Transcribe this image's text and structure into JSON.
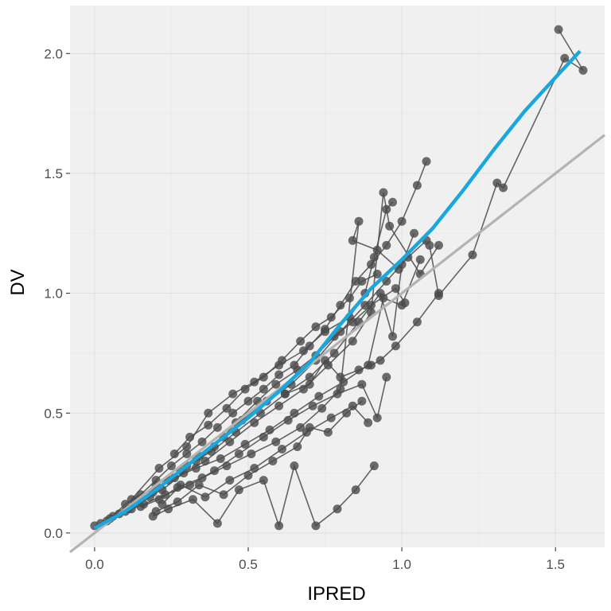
{
  "chart_data": {
    "type": "scatter",
    "xlabel": "IPRED",
    "ylabel": "DV",
    "xlim": [
      -0.08,
      1.66
    ],
    "ylim": [
      -0.06,
      2.2
    ],
    "x_ticks": [
      {
        "value": 0.0,
        "label": "0.0"
      },
      {
        "value": 0.5,
        "label": "0.5"
      },
      {
        "value": 1.0,
        "label": "1.0"
      },
      {
        "value": 1.5,
        "label": "1.5"
      }
    ],
    "y_ticks": [
      {
        "value": 0.0,
        "label": "0.0"
      },
      {
        "value": 0.5,
        "label": "0.5"
      },
      {
        "value": 1.0,
        "label": "1.0"
      },
      {
        "value": 1.5,
        "label": "1.5"
      },
      {
        "value": 2.0,
        "label": "2.0"
      }
    ],
    "grid": true,
    "colors": {
      "panel": "#f0f0f0",
      "gridline": "#e0e0e0",
      "points": "#4a4a4a",
      "trend": "#1aa7dd",
      "identity": "#b3b3b3"
    },
    "subjects": [
      [
        [
          0.0,
          0.03
        ],
        [
          0.05,
          0.06
        ],
        [
          0.1,
          0.12
        ],
        [
          0.15,
          0.16
        ],
        [
          0.2,
          0.22
        ],
        [
          0.25,
          0.28
        ],
        [
          0.3,
          0.33
        ],
        [
          0.35,
          0.38
        ],
        [
          0.4,
          0.44
        ],
        [
          0.45,
          0.5
        ],
        [
          0.5,
          0.55
        ],
        [
          0.55,
          0.6
        ],
        [
          0.6,
          0.66
        ],
        [
          0.65,
          0.7
        ],
        [
          0.7,
          0.78
        ],
        [
          0.75,
          0.85
        ],
        [
          0.8,
          0.95
        ],
        [
          0.85,
          1.05
        ],
        [
          0.9,
          1.12
        ],
        [
          0.95,
          1.2
        ],
        [
          1.0,
          1.3
        ],
        [
          1.05,
          1.45
        ],
        [
          1.08,
          1.55
        ]
      ],
      [
        [
          0.02,
          0.04
        ],
        [
          0.08,
          0.08
        ],
        [
          0.14,
          0.14
        ],
        [
          0.2,
          0.2
        ],
        [
          0.28,
          0.26
        ],
        [
          0.34,
          0.32
        ],
        [
          0.42,
          0.4
        ],
        [
          0.48,
          0.47
        ],
        [
          0.56,
          0.55
        ],
        [
          0.64,
          0.62
        ],
        [
          0.72,
          0.72
        ],
        [
          0.8,
          0.84
        ],
        [
          0.88,
          0.95
        ],
        [
          0.95,
          1.05
        ],
        [
          1.02,
          1.15
        ],
        [
          1.08,
          1.22
        ]
      ],
      [
        [
          0.04,
          0.05
        ],
        [
          0.12,
          0.1
        ],
        [
          0.18,
          0.15
        ],
        [
          0.24,
          0.22
        ],
        [
          0.3,
          0.28
        ],
        [
          0.38,
          0.34
        ],
        [
          0.46,
          0.42
        ],
        [
          0.54,
          0.5
        ],
        [
          0.62,
          0.58
        ],
        [
          0.7,
          0.65
        ],
        [
          0.78,
          0.75
        ],
        [
          0.86,
          0.88
        ],
        [
          0.93,
          1.0
        ],
        [
          0.97,
          0.82
        ],
        [
          1.0,
          1.12
        ],
        [
          1.04,
          1.25
        ]
      ],
      [
        [
          0.06,
          0.07
        ],
        [
          0.13,
          0.13
        ],
        [
          0.22,
          0.18
        ],
        [
          0.29,
          0.25
        ],
        [
          0.36,
          0.3
        ],
        [
          0.44,
          0.38
        ],
        [
          0.52,
          0.46
        ],
        [
          0.6,
          0.53
        ],
        [
          0.68,
          0.6
        ],
        [
          0.76,
          0.7
        ],
        [
          0.84,
          0.8
        ],
        [
          0.9,
          0.92
        ],
        [
          0.94,
          1.42
        ],
        [
          0.96,
          1.28
        ],
        [
          1.06,
          1.08
        ],
        [
          1.12,
          1.2
        ]
      ],
      [
        [
          0.1,
          0.09
        ],
        [
          0.16,
          0.12
        ],
        [
          0.23,
          0.16
        ],
        [
          0.31,
          0.2
        ],
        [
          0.39,
          0.26
        ],
        [
          0.47,
          0.33
        ],
        [
          0.55,
          0.4
        ],
        [
          0.63,
          0.47
        ],
        [
          0.71,
          0.53
        ],
        [
          0.79,
          0.58
        ],
        [
          0.87,
          0.62
        ],
        [
          0.92,
          0.48
        ],
        [
          0.95,
          0.65
        ]
      ],
      [
        [
          0.11,
          0.1
        ],
        [
          0.19,
          0.17
        ],
        [
          0.26,
          0.23
        ],
        [
          0.33,
          0.27
        ],
        [
          0.41,
          0.31
        ],
        [
          0.49,
          0.37
        ],
        [
          0.57,
          0.43
        ],
        [
          0.65,
          0.5
        ],
        [
          0.73,
          0.57
        ],
        [
          0.81,
          0.63
        ],
        [
          0.89,
          0.7
        ],
        [
          0.94,
          0.98
        ],
        [
          1.0,
          0.95
        ],
        [
          1.06,
          1.14
        ]
      ],
      [
        [
          0.15,
          0.11
        ],
        [
          0.21,
          0.14
        ],
        [
          0.27,
          0.19
        ],
        [
          0.35,
          0.23
        ],
        [
          0.43,
          0.28
        ],
        [
          0.51,
          0.33
        ],
        [
          0.59,
          0.38
        ],
        [
          0.67,
          0.44
        ],
        [
          0.74,
          0.52
        ],
        [
          0.8,
          0.6
        ],
        [
          0.86,
          1.3
        ],
        [
          0.84,
          1.22
        ],
        [
          0.92,
          1.18
        ],
        [
          0.99,
          1.1
        ]
      ],
      [
        [
          0.19,
          0.07
        ],
        [
          0.24,
          0.1
        ],
        [
          0.32,
          0.14
        ],
        [
          0.4,
          0.04
        ],
        [
          0.47,
          0.18
        ],
        [
          0.55,
          0.22
        ],
        [
          0.6,
          0.03
        ],
        [
          0.65,
          0.28
        ],
        [
          0.72,
          0.03
        ],
        [
          0.79,
          0.1
        ],
        [
          0.85,
          0.18
        ],
        [
          0.91,
          0.28
        ]
      ],
      [
        [
          0.2,
          0.09
        ],
        [
          0.27,
          0.13
        ],
        [
          0.34,
          0.2
        ],
        [
          0.42,
          0.16
        ],
        [
          0.5,
          0.24
        ],
        [
          0.58,
          0.3
        ],
        [
          0.66,
          0.36
        ],
        [
          0.7,
          0.44
        ],
        [
          0.76,
          0.42
        ],
        [
          0.82,
          0.5
        ],
        [
          0.87,
          0.55
        ]
      ],
      [
        [
          0.22,
          0.12
        ],
        [
          0.28,
          0.2
        ],
        [
          0.36,
          0.15
        ],
        [
          0.44,
          0.22
        ],
        [
          0.52,
          0.27
        ],
        [
          0.61,
          0.35
        ],
        [
          0.69,
          0.42
        ],
        [
          0.77,
          0.48
        ],
        [
          0.84,
          0.53
        ],
        [
          0.89,
          0.46
        ]
      ],
      [
        [
          0.26,
          0.33
        ],
        [
          0.31,
          0.4
        ],
        [
          0.37,
          0.45
        ],
        [
          0.43,
          0.52
        ],
        [
          0.49,
          0.6
        ],
        [
          0.55,
          0.65
        ],
        [
          0.61,
          0.72
        ],
        [
          0.67,
          0.8
        ],
        [
          0.72,
          0.86
        ],
        [
          0.77,
          0.9
        ],
        [
          0.83,
          0.98
        ],
        [
          0.87,
          1.05
        ],
        [
          0.92,
          1.08
        ]
      ],
      [
        [
          0.12,
          0.14
        ],
        [
          0.21,
          0.27
        ],
        [
          0.3,
          0.36
        ],
        [
          0.37,
          0.5
        ],
        [
          0.45,
          0.58
        ],
        [
          0.52,
          0.63
        ],
        [
          0.6,
          0.7
        ],
        [
          0.68,
          0.76
        ],
        [
          0.75,
          0.84
        ],
        [
          0.83,
          0.9
        ],
        [
          0.88,
          1.0
        ],
        [
          0.91,
          1.15
        ],
        [
          0.95,
          1.35
        ],
        [
          0.97,
          1.38
        ]
      ],
      [
        [
          0.33,
          0.3
        ],
        [
          0.39,
          0.36
        ],
        [
          0.46,
          0.46
        ],
        [
          0.53,
          0.55
        ],
        [
          0.59,
          0.62
        ],
        [
          0.66,
          0.68
        ],
        [
          0.72,
          0.74
        ],
        [
          0.78,
          0.82
        ],
        [
          0.84,
          0.88
        ],
        [
          0.9,
          0.95
        ],
        [
          0.98,
          1.02
        ],
        [
          1.01,
          0.96
        ]
      ],
      [
        [
          1.51,
          2.1
        ],
        [
          1.59,
          1.93
        ],
        [
          1.53,
          1.98
        ],
        [
          1.33,
          1.44
        ],
        [
          1.31,
          1.46
        ],
        [
          1.23,
          1.16
        ],
        [
          1.12,
          0.99
        ],
        [
          1.09,
          1.2
        ]
      ],
      [
        [
          0.62,
          0.58
        ],
        [
          0.7,
          0.62
        ],
        [
          0.75,
          0.72
        ],
        [
          0.8,
          0.65
        ],
        [
          0.86,
          0.68
        ],
        [
          0.9,
          0.7
        ],
        [
          0.93,
          0.72
        ],
        [
          0.98,
          0.78
        ],
        [
          1.05,
          0.88
        ],
        [
          1.12,
          1.0
        ]
      ]
    ],
    "trend_loess": [
      [
        0.0,
        0.02
      ],
      [
        0.1,
        0.09
      ],
      [
        0.2,
        0.18
      ],
      [
        0.3,
        0.28
      ],
      [
        0.4,
        0.38
      ],
      [
        0.5,
        0.48
      ],
      [
        0.6,
        0.59
      ],
      [
        0.7,
        0.71
      ],
      [
        0.8,
        0.87
      ],
      [
        0.9,
        1.02
      ],
      [
        1.0,
        1.14
      ],
      [
        1.1,
        1.27
      ],
      [
        1.2,
        1.43
      ],
      [
        1.3,
        1.6
      ],
      [
        1.4,
        1.76
      ],
      [
        1.5,
        1.9
      ],
      [
        1.58,
        2.01
      ]
    ],
    "identity_line": [
      [
        -0.08,
        -0.08
      ],
      [
        1.66,
        1.66
      ]
    ]
  }
}
